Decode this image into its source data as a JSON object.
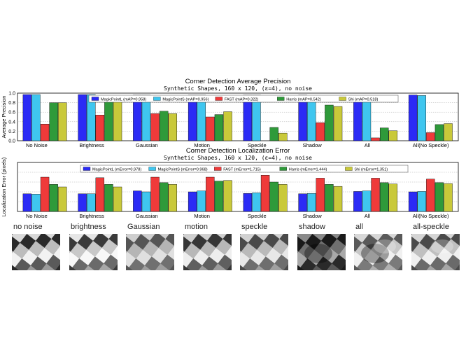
{
  "colors": {
    "MagicPointL": "#2b2bf5",
    "MagicPointS": "#3fc6ef",
    "FAST": "#ef3a3a",
    "Harris": "#2f9a3a",
    "Shi": "#c9c93a",
    "grid": "#b0b0b0",
    "axis": "#000000"
  },
  "chart_data": [
    {
      "type": "bar",
      "title": "Corner Detection Average Precision",
      "subtitle": "Synthetic Shapes, 160 x 120, (ε=4), no noise",
      "xlabel": "",
      "ylabel": "Average Precision",
      "ylim": [
        0.0,
        1.0
      ],
      "yticks": [
        "0.0",
        "0.2",
        "0.4",
        "0.6",
        "0.8",
        "1.0"
      ],
      "grid": true,
      "legend_position": "top",
      "categories": [
        "No Noise",
        "Brightness",
        "Gaussian",
        "Motion",
        "Speckle",
        "Shadow",
        "All",
        "All(No Speckle)"
      ],
      "series": [
        {
          "name": "MagicPointL (mAP=0.958)",
          "values": [
            0.97,
            0.97,
            0.96,
            0.96,
            0.96,
            0.96,
            0.95,
            0.96
          ]
        },
        {
          "name": "MagicPointS (mAP=0.956)",
          "values": [
            0.97,
            0.97,
            0.96,
            0.96,
            0.96,
            0.95,
            0.95,
            0.95
          ]
        },
        {
          "name": "FAST (mAP=0.322)",
          "values": [
            0.35,
            0.54,
            0.57,
            0.5,
            0.0,
            0.38,
            0.06,
            0.17
          ]
        },
        {
          "name": "Harris (mAP=0.542)",
          "values": [
            0.8,
            0.82,
            0.62,
            0.55,
            0.28,
            0.75,
            0.27,
            0.34
          ]
        },
        {
          "name": "Shi (mAP=0.518)",
          "values": [
            0.8,
            0.82,
            0.57,
            0.61,
            0.16,
            0.72,
            0.21,
            0.36
          ]
        }
      ]
    },
    {
      "type": "bar",
      "title": "Corner Detection Localization Error",
      "subtitle": "Synthetic Shapes, 160 x 120, (ε=4), no noise",
      "xlabel": "",
      "ylabel": "Localization Error (pixels)",
      "ylim": [
        0.0,
        2.5
      ],
      "grid": true,
      "legend_position": "top",
      "categories": [
        "No Noise",
        "Brightness",
        "Gaussian",
        "Motion",
        "Speckle",
        "Shadow",
        "All",
        "All(No Speckle)"
      ],
      "series": [
        {
          "name": "MagicPointL (mError=0.978)",
          "values": [
            0.9,
            0.9,
            1.05,
            1.0,
            0.92,
            0.9,
            1.02,
            1.0
          ]
        },
        {
          "name": "MagicPointS (mError=0.968)",
          "values": [
            0.88,
            0.9,
            1.0,
            1.05,
            0.95,
            0.92,
            1.05,
            1.02
          ]
        },
        {
          "name": "FAST (mError=1.715)",
          "values": [
            1.75,
            1.72,
            1.75,
            1.75,
            1.85,
            1.7,
            1.7,
            1.65
          ]
        },
        {
          "name": "Harris (mError=1.444)",
          "values": [
            1.38,
            1.38,
            1.47,
            1.55,
            1.5,
            1.38,
            1.47,
            1.47
          ]
        },
        {
          "name": "Shi (mError=1.351)",
          "values": [
            1.25,
            1.25,
            1.38,
            1.58,
            1.38,
            1.28,
            1.4,
            1.42
          ]
        }
      ]
    }
  ],
  "thumbnails": [
    {
      "label": "no noise",
      "style": "clean"
    },
    {
      "label": "brightness",
      "style": "bright"
    },
    {
      "label": "Gaussian",
      "style": "gauss"
    },
    {
      "label": "motion",
      "style": "motion"
    },
    {
      "label": "speckle",
      "style": "speckle"
    },
    {
      "label": "shadow",
      "style": "shadow"
    },
    {
      "label": "all",
      "style": "all"
    },
    {
      "label": "all-speckle",
      "style": "allspeckle"
    }
  ]
}
